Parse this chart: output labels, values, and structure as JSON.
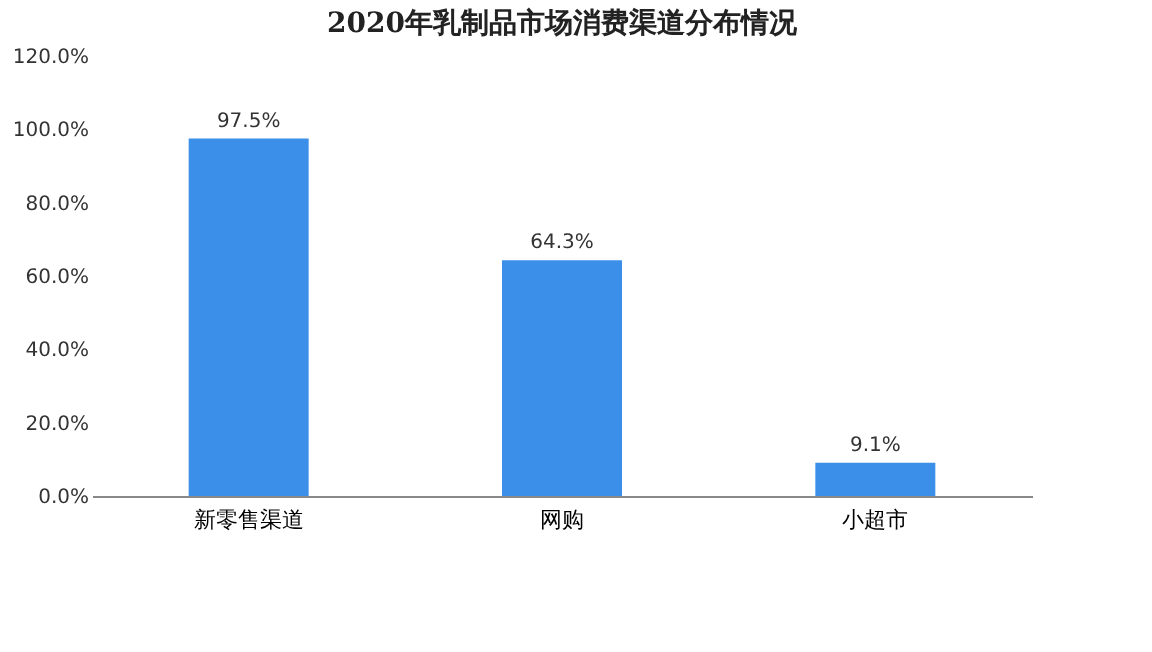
{
  "chart_data": {
    "type": "bar",
    "title": "2020年乳制品市场消费渠道分布情况",
    "categories": [
      "新零售渠道",
      "网购",
      "小超市"
    ],
    "values": [
      97.5,
      64.3,
      9.1
    ],
    "value_labels": [
      "97.5%",
      "64.3%",
      "9.1%"
    ],
    "color": "#3b8fe8",
    "ylim": [
      0,
      120
    ],
    "yticks": [
      {
        "value": 0,
        "label": "0.0%"
      },
      {
        "value": 20,
        "label": "20.0%"
      },
      {
        "value": 40,
        "label": "40.0%"
      },
      {
        "value": 60,
        "label": "60.0%"
      },
      {
        "value": 80,
        "label": "80.0%"
      },
      {
        "value": 100,
        "label": "100.0%"
      },
      {
        "value": 120,
        "label": "120.0%"
      }
    ],
    "grid": false
  }
}
